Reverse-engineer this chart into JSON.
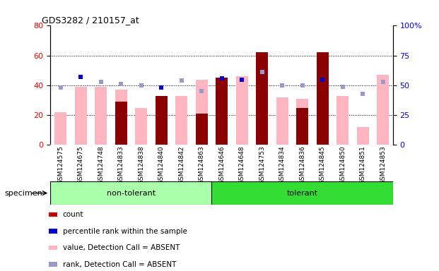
{
  "title": "GDS3282 / 210157_at",
  "specimens": [
    "GSM124575",
    "GSM124675",
    "GSM124748",
    "GSM124833",
    "GSM124838",
    "GSM124840",
    "GSM124842",
    "GSM124863",
    "GSM124646",
    "GSM124648",
    "GSM124753",
    "GSM124834",
    "GSM124836",
    "GSM124845",
    "GSM124850",
    "GSM124851",
    "GSM124853"
  ],
  "n_nontolerant": 8,
  "count": [
    0,
    0,
    0,
    29,
    0,
    33,
    0,
    21,
    45,
    0,
    62,
    0,
    25,
    62,
    0,
    0,
    0
  ],
  "percentile_rank": [
    48,
    57,
    53,
    51,
    50,
    48,
    54,
    45,
    56,
    55,
    60,
    50,
    50,
    55,
    49,
    43,
    53
  ],
  "value_absent": [
    22,
    39,
    39,
    37,
    25,
    25,
    33,
    44,
    44,
    46,
    61,
    32,
    31,
    50,
    33,
    12,
    47
  ],
  "rank_absent": [
    48,
    57,
    53,
    51,
    50,
    48,
    54,
    45,
    56,
    55,
    61,
    50,
    50,
    55,
    49,
    43,
    53
  ],
  "has_count": [
    false,
    false,
    false,
    true,
    false,
    true,
    false,
    true,
    true,
    false,
    true,
    false,
    true,
    true,
    false,
    false,
    false
  ],
  "has_percentile": [
    false,
    true,
    false,
    false,
    false,
    true,
    false,
    false,
    true,
    true,
    false,
    false,
    false,
    true,
    false,
    false,
    false
  ],
  "ylim_left": [
    0,
    80
  ],
  "ylim_right": [
    0,
    100
  ],
  "yticks_left": [
    0,
    20,
    40,
    60,
    80
  ],
  "yticks_right": [
    0,
    25,
    50,
    75,
    100
  ],
  "ytick_right_labels": [
    "0",
    "25",
    "50",
    "75",
    "100%"
  ],
  "bar_color_count": "#8B0000",
  "bar_color_value": "#FFB6C1",
  "dot_color_percentile": "#0000CD",
  "dot_color_rank": "#9999CC",
  "color_nontolerant": "#AAFFAA",
  "color_tolerant": "#33DD33",
  "bg_xlabels": "#D3D3D3",
  "legend_items": [
    {
      "color": "#CC0000",
      "label": "count"
    },
    {
      "color": "#0000CC",
      "label": "percentile rank within the sample"
    },
    {
      "color": "#FFB6C1",
      "label": "value, Detection Call = ABSENT"
    },
    {
      "color": "#9999CC",
      "label": "rank, Detection Call = ABSENT"
    }
  ]
}
